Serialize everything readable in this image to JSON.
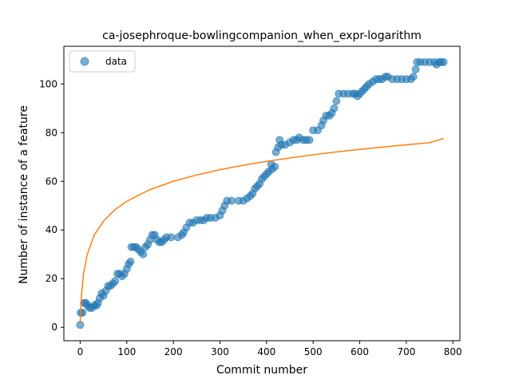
{
  "chart_data": {
    "type": "scatter",
    "title": "ca-josephroque-bowlingcompanion_when_expr-logarithm",
    "xlabel": "Commit number",
    "ylabel": "Number of instance of a feature",
    "xlim": [
      -35,
      815
    ],
    "ylim": [
      -5.5,
      115.5
    ],
    "xticks": [
      0,
      100,
      200,
      300,
      400,
      500,
      600,
      700,
      800
    ],
    "yticks": [
      0,
      20,
      40,
      60,
      80,
      100
    ],
    "grid": false,
    "legend": {
      "placement": "upper-left",
      "entries": [
        "data"
      ]
    },
    "colors": {
      "data": "#1f77b4",
      "fit": "#ff7f0e"
    },
    "series": [
      {
        "name": "data",
        "kind": "scatter",
        "points": [
          [
            0,
            1
          ],
          [
            1,
            6
          ],
          [
            5,
            6
          ],
          [
            8,
            10
          ],
          [
            12,
            10
          ],
          [
            16,
            9
          ],
          [
            20,
            8
          ],
          [
            25,
            8
          ],
          [
            30,
            9
          ],
          [
            35,
            9
          ],
          [
            38,
            10
          ],
          [
            42,
            12
          ],
          [
            46,
            14
          ],
          [
            50,
            13
          ],
          [
            55,
            15
          ],
          [
            60,
            17
          ],
          [
            65,
            17
          ],
          [
            70,
            18
          ],
          [
            75,
            19
          ],
          [
            80,
            22
          ],
          [
            85,
            22
          ],
          [
            90,
            21
          ],
          [
            95,
            22
          ],
          [
            100,
            24
          ],
          [
            104,
            26
          ],
          [
            108,
            27
          ],
          [
            110,
            33
          ],
          [
            115,
            33
          ],
          [
            120,
            33
          ],
          [
            125,
            32
          ],
          [
            130,
            31
          ],
          [
            135,
            30
          ],
          [
            140,
            33
          ],
          [
            145,
            34
          ],
          [
            150,
            36
          ],
          [
            155,
            38
          ],
          [
            160,
            38
          ],
          [
            165,
            36
          ],
          [
            170,
            35
          ],
          [
            175,
            35
          ],
          [
            180,
            36
          ],
          [
            185,
            37
          ],
          [
            195,
            37
          ],
          [
            210,
            37
          ],
          [
            218,
            38
          ],
          [
            222,
            39
          ],
          [
            228,
            41
          ],
          [
            235,
            43
          ],
          [
            242,
            43
          ],
          [
            250,
            44
          ],
          [
            258,
            44
          ],
          [
            265,
            44
          ],
          [
            272,
            45
          ],
          [
            280,
            45
          ],
          [
            290,
            45
          ],
          [
            300,
            46
          ],
          [
            305,
            48
          ],
          [
            310,
            50
          ],
          [
            315,
            52
          ],
          [
            325,
            52
          ],
          [
            340,
            52
          ],
          [
            350,
            52
          ],
          [
            358,
            53
          ],
          [
            365,
            54
          ],
          [
            370,
            55
          ],
          [
            375,
            57
          ],
          [
            380,
            58
          ],
          [
            385,
            59
          ],
          [
            390,
            61
          ],
          [
            395,
            62
          ],
          [
            400,
            63
          ],
          [
            405,
            64
          ],
          [
            410,
            67
          ],
          [
            412,
            65
          ],
          [
            418,
            66
          ],
          [
            420,
            72
          ],
          [
            425,
            74
          ],
          [
            428,
            77
          ],
          [
            432,
            75
          ],
          [
            440,
            75
          ],
          [
            450,
            76
          ],
          [
            458,
            77
          ],
          [
            465,
            77
          ],
          [
            470,
            78
          ],
          [
            478,
            77
          ],
          [
            485,
            77
          ],
          [
            492,
            77
          ],
          [
            500,
            81
          ],
          [
            510,
            81
          ],
          [
            518,
            83
          ],
          [
            522,
            85
          ],
          [
            528,
            87
          ],
          [
            535,
            87
          ],
          [
            540,
            88
          ],
          [
            545,
            90
          ],
          [
            550,
            93
          ],
          [
            555,
            96
          ],
          [
            565,
            96
          ],
          [
            575,
            96
          ],
          [
            585,
            96
          ],
          [
            590,
            96
          ],
          [
            595,
            95
          ],
          [
            600,
            96
          ],
          [
            605,
            97
          ],
          [
            610,
            98
          ],
          [
            615,
            99
          ],
          [
            620,
            100
          ],
          [
            628,
            101
          ],
          [
            635,
            102
          ],
          [
            642,
            102
          ],
          [
            648,
            102
          ],
          [
            655,
            103
          ],
          [
            660,
            103
          ],
          [
            670,
            102
          ],
          [
            680,
            102
          ],
          [
            690,
            102
          ],
          [
            700,
            102
          ],
          [
            710,
            102
          ],
          [
            715,
            103
          ],
          [
            720,
            106
          ],
          [
            723,
            109
          ],
          [
            730,
            109
          ],
          [
            740,
            109
          ],
          [
            750,
            109
          ],
          [
            760,
            109
          ],
          [
            765,
            108
          ],
          [
            770,
            109
          ],
          [
            775,
            109
          ],
          [
            780,
            109
          ]
        ]
      },
      {
        "name": "fit",
        "kind": "line",
        "points": [
          [
            0,
            1.7
          ],
          [
            1,
            6.7
          ],
          [
            3,
            13.5
          ],
          [
            7,
            21.7
          ],
          [
            15,
            29.9
          ],
          [
            30,
            37.9
          ],
          [
            50,
            43.6
          ],
          [
            75,
            48.4
          ],
          [
            100,
            51.8
          ],
          [
            150,
            56.6
          ],
          [
            200,
            60.0
          ],
          [
            250,
            62.6
          ],
          [
            300,
            64.8
          ],
          [
            350,
            66.6
          ],
          [
            400,
            68.2
          ],
          [
            450,
            69.6
          ],
          [
            500,
            70.9
          ],
          [
            550,
            72.1
          ],
          [
            600,
            73.1
          ],
          [
            650,
            74.1
          ],
          [
            700,
            75.0
          ],
          [
            750,
            75.9
          ],
          [
            780,
            77.6
          ]
        ]
      }
    ]
  }
}
